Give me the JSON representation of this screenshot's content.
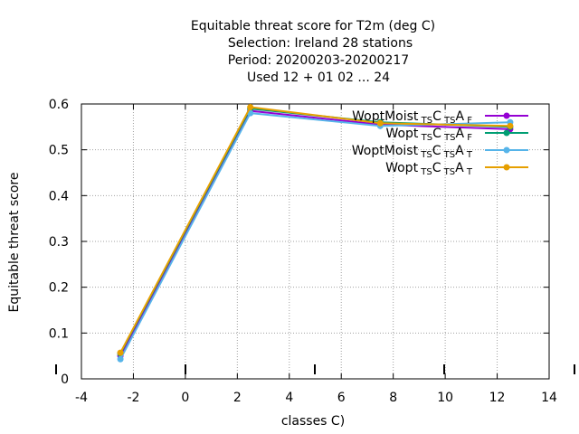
{
  "title_lines": [
    "Equitable threat score  for T2m (deg C)",
    "Selection: Ireland     28 stations",
    "Period: 20200203-20200217",
    "Used  12 + 01 02 ... 24"
  ],
  "chart_data": {
    "type": "line",
    "xlabel": "classes C)",
    "ylabel": "Equitable threat score",
    "xlim": [
      -4,
      14
    ],
    "ylim": [
      0,
      0.6
    ],
    "x_ticks": [
      -4,
      -2,
      0,
      2,
      4,
      6,
      8,
      10,
      12,
      14
    ],
    "y_ticks": [
      0.1,
      0.2,
      0.3,
      0.4,
      0.5,
      0.6
    ],
    "y_ticks_labels": [
      "0.1",
      "0.2",
      "0.3",
      "0.4",
      "0.5",
      "0.6"
    ],
    "y_zero_label": "0",
    "grid": true,
    "legend_position": "top-right",
    "x": [
      -2.5,
      2.5,
      7.5,
      12.5
    ],
    "series": [
      {
        "name_parts": [
          "WoptMoist",
          "TS",
          "C",
          "TS",
          "A",
          "F"
        ],
        "color": "#9400d3",
        "values": [
          0.05,
          0.585,
          0.555,
          0.545
        ]
      },
      {
        "name_parts": [
          "Wopt",
          "TS",
          "C",
          "TS",
          "A",
          "F"
        ],
        "color": "#009e73",
        "values": [
          0.055,
          0.59,
          0.56,
          0.55
        ]
      },
      {
        "name_parts": [
          "WoptMoist",
          "TS",
          "C",
          "TS",
          "A",
          "T"
        ],
        "color": "#56b4e9",
        "values": [
          0.043,
          0.58,
          0.552,
          0.56
        ]
      },
      {
        "name_parts": [
          "Wopt",
          "TS",
          "C",
          "TS",
          "A",
          "T"
        ],
        "color": "#e69f00",
        "values": [
          0.057,
          0.593,
          0.558,
          0.552
        ]
      }
    ],
    "extra_bottom_ticks": [
      -4,
      0,
      5,
      10,
      14.5
    ]
  }
}
